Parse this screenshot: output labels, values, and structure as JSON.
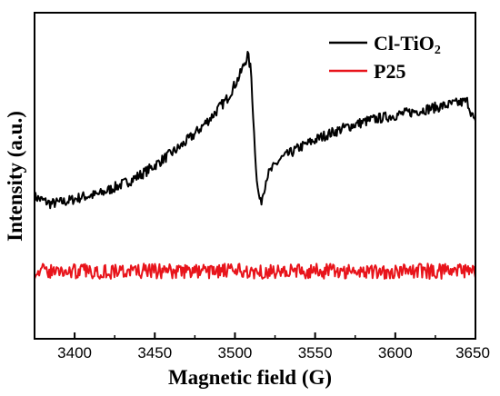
{
  "chart_data": {
    "type": "line",
    "title": "",
    "xlabel": "Magnetic field (G)",
    "ylabel": "Intensity (a.u.)",
    "xlim": [
      3375,
      3650
    ],
    "ylim": [
      -0.25,
      1.15
    ],
    "x_ticks": [
      "3400",
      "3450",
      "3500",
      "3550",
      "3600",
      "3650"
    ],
    "y_ticks_shown": false,
    "legend_position": "top-right",
    "series": [
      {
        "name": "Cl-TiO2",
        "color": "#000000",
        "points": [
          [
            3375,
            0.36
          ],
          [
            3385,
            0.33
          ],
          [
            3395,
            0.34
          ],
          [
            3405,
            0.36
          ],
          [
            3415,
            0.37
          ],
          [
            3425,
            0.4
          ],
          [
            3435,
            0.43
          ],
          [
            3445,
            0.47
          ],
          [
            3455,
            0.52
          ],
          [
            3465,
            0.57
          ],
          [
            3475,
            0.63
          ],
          [
            3485,
            0.7
          ],
          [
            3495,
            0.78
          ],
          [
            3503,
            0.88
          ],
          [
            3508,
            0.97
          ],
          [
            3510,
            0.9
          ],
          [
            3512,
            0.62
          ],
          [
            3514,
            0.4
          ],
          [
            3516,
            0.33
          ],
          [
            3520,
            0.45
          ],
          [
            3528,
            0.52
          ],
          [
            3540,
            0.57
          ],
          [
            3555,
            0.62
          ],
          [
            3570,
            0.66
          ],
          [
            3585,
            0.69
          ],
          [
            3600,
            0.71
          ],
          [
            3615,
            0.73
          ],
          [
            3630,
            0.75
          ],
          [
            3645,
            0.77
          ],
          [
            3650,
            0.67
          ]
        ]
      },
      {
        "name": "P25",
        "color": "#e8141b",
        "points": [
          [
            3375,
            0.04
          ],
          [
            3400,
            0.04
          ],
          [
            3425,
            0.04
          ],
          [
            3450,
            0.04
          ],
          [
            3475,
            0.04
          ],
          [
            3500,
            0.04
          ],
          [
            3525,
            0.04
          ],
          [
            3550,
            0.04
          ],
          [
            3575,
            0.04
          ],
          [
            3600,
            0.04
          ],
          [
            3625,
            0.04
          ],
          [
            3650,
            0.04
          ]
        ]
      }
    ]
  },
  "legend": {
    "items": [
      {
        "label_main": "Cl-TiO",
        "label_sub": "2",
        "color": "#000000"
      },
      {
        "label_main": "P25",
        "label_sub": "",
        "color": "#e8141b"
      }
    ]
  }
}
